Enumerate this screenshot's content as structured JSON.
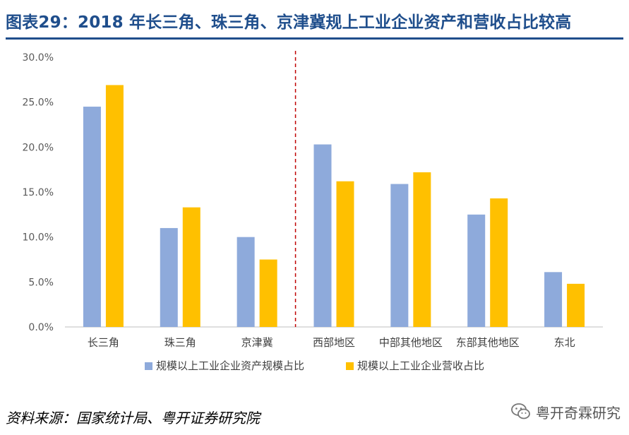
{
  "title": "图表29：2018 年长三角、珠三角、京津冀规上工业企业资产和营收占比较高",
  "source": "资料来源：国家统计局、粤开证券研究院",
  "watermark": "粤开奇霖研究",
  "colors": {
    "title": "#1f4e8c",
    "series_assets": "#8eaadb",
    "series_revenue": "#ffc000",
    "divider": "#c00000",
    "axis_text": "#595959"
  },
  "chart_data": {
    "type": "bar",
    "title": "",
    "xlabel": "",
    "ylabel": "",
    "categories": [
      "长三角",
      "珠三角",
      "京津冀",
      "西部地区",
      "中部其他地区",
      "东部其他地区",
      "东北"
    ],
    "series": [
      {
        "name": "规模以上工业企业资产规模占比",
        "values": [
          24.5,
          11.0,
          10.0,
          20.3,
          15.9,
          12.5,
          6.1
        ]
      },
      {
        "name": "规模以上工业企业营收占比",
        "values": [
          26.9,
          13.3,
          7.5,
          16.2,
          17.2,
          14.3,
          4.8
        ]
      }
    ],
    "y_ticks": [
      "0.0%",
      "5.0%",
      "10.0%",
      "15.0%",
      "20.0%",
      "25.0%",
      "30.0%"
    ],
    "ylim": [
      0,
      30
    ],
    "divider_after_category": "京津冀",
    "legend_position": "bottom",
    "grid": false
  }
}
